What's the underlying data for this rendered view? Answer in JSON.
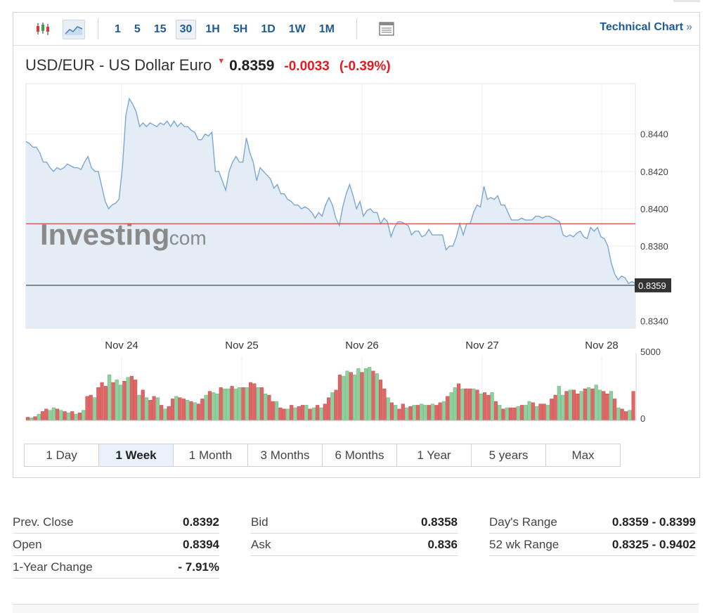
{
  "toolbar": {
    "candle_icon": "candlestick-icon",
    "area_icon": "area-chart-icon",
    "intervals": [
      "1",
      "5",
      "15",
      "30",
      "1H",
      "5H",
      "1D",
      "1W",
      "1M"
    ],
    "active_interval": "30",
    "table_icon": "table-icon",
    "technical_chart_label": "Technical Chart",
    "technical_chart_arrow": "»"
  },
  "instrument": {
    "name": "USD/EUR - US Dollar Euro",
    "price": "0.8359",
    "change": "-0.0033",
    "change_pct": "(-0.39%)",
    "down_color": "#e31b23"
  },
  "watermark": {
    "brand": "Investing",
    "suffix": ".com"
  },
  "chart_data": {
    "type": "area",
    "x_labels": [
      "Nov 24",
      "Nov 25",
      "Nov 26",
      "Nov 27",
      "Nov 28"
    ],
    "y_ticks": [
      "0.8440",
      "0.8420",
      "0.8400",
      "0.8380",
      "0.8340"
    ],
    "ylim": [
      0.8336,
      0.8467
    ],
    "prev_close": 0.8392,
    "current_price": 0.8359,
    "current_price_label": "0.8359",
    "prices": [
      0.8436,
      0.8435,
      0.8433,
      0.8433,
      0.843,
      0.8425,
      0.8425,
      0.8422,
      0.842,
      0.8422,
      0.8421,
      0.8422,
      0.8424,
      0.8423,
      0.8422,
      0.8422,
      0.8421,
      0.8425,
      0.8428,
      0.8422,
      0.842,
      0.842,
      0.8412,
      0.8404,
      0.84,
      0.8402,
      0.8403,
      0.8405,
      0.8422,
      0.845,
      0.8459,
      0.8456,
      0.8452,
      0.8444,
      0.8446,
      0.8444,
      0.8446,
      0.8445,
      0.8444,
      0.8446,
      0.8445,
      0.8447,
      0.8444,
      0.8447,
      0.8444,
      0.8446,
      0.8444,
      0.8444,
      0.8442,
      0.8441,
      0.8437,
      0.8437,
      0.844,
      0.8439,
      0.8441,
      0.842,
      0.842,
      0.8415,
      0.841,
      0.842,
      0.8425,
      0.8428,
      0.8425,
      0.8425,
      0.8438,
      0.843,
      0.8425,
      0.8415,
      0.8422,
      0.842,
      0.8418,
      0.8416,
      0.8411,
      0.8413,
      0.8408,
      0.8408,
      0.8405,
      0.8404,
      0.8402,
      0.8402,
      0.84,
      0.8401,
      0.84,
      0.8398,
      0.8395,
      0.8398,
      0.8396,
      0.8402,
      0.8406,
      0.8402,
      0.8395,
      0.8391,
      0.8401,
      0.8408,
      0.8413,
      0.8407,
      0.84,
      0.8404,
      0.8396,
      0.8399,
      0.84,
      0.8398,
      0.8398,
      0.8392,
      0.8395,
      0.8393,
      0.8385,
      0.839,
      0.8393,
      0.8393,
      0.8392,
      0.8391,
      0.8386,
      0.8388,
      0.8388,
      0.8385,
      0.8386,
      0.8389,
      0.8386,
      0.8386,
      0.8386,
      0.8386,
      0.8378,
      0.838,
      0.838,
      0.8385,
      0.8392,
      0.8386,
      0.8392,
      0.8392,
      0.8398,
      0.8402,
      0.8401,
      0.8412,
      0.8405,
      0.8406,
      0.8405,
      0.8407,
      0.8402,
      0.8402,
      0.8398,
      0.8394,
      0.8394,
      0.8394,
      0.8395,
      0.8394,
      0.8394,
      0.8394,
      0.8396,
      0.8396,
      0.8395,
      0.8396,
      0.8396,
      0.8395,
      0.8394,
      0.8393,
      0.8386,
      0.8385,
      0.8386,
      0.8385,
      0.8387,
      0.8388,
      0.8385,
      0.8384,
      0.839,
      0.8388,
      0.839,
      0.8385,
      0.8384,
      0.838,
      0.8371,
      0.8365,
      0.8362,
      0.8364,
      0.8363,
      0.836,
      0.8361,
      0.836
    ],
    "volume_ylim": [
      0,
      5000
    ],
    "volume_ticks": [
      "5000",
      "0"
    ],
    "volume_up_color": "#8fd19e",
    "volume_down_color": "#e06666",
    "volumes": [
      250,
      200,
      300,
      500,
      700,
      900,
      800,
      1000,
      900,
      800,
      700,
      600,
      700,
      500,
      600,
      800,
      1900,
      2000,
      1800,
      2600,
      3000,
      2700,
      3600,
      3000,
      3200,
      2800,
      3100,
      3400,
      3500,
      3200,
      2000,
      2400,
      1800,
      1600,
      1900,
      1800,
      1200,
      900,
      1100,
      1700,
      1900,
      1800,
      1700,
      1600,
      1500,
      1400,
      1300,
      1700,
      2000,
      2300,
      2200,
      2100,
      2600,
      2500,
      2500,
      2700,
      2500,
      2600,
      2600,
      2600,
      3000,
      2900,
      2600,
      2600,
      2100,
      2000,
      1500,
      1500,
      1000,
      900,
      900,
      1200,
      1000,
      1100,
      1200,
      1200,
      900,
      1000,
      1200,
      1000,
      1300,
      1800,
      2200,
      2400,
      3600,
      3500,
      3900,
      3800,
      3600,
      4100,
      3800,
      4100,
      4200,
      3900,
      3700,
      3200,
      2500,
      1800,
      1400,
      1200,
      900,
      1300,
      1000,
      1100,
      1200,
      1200,
      1300,
      1200,
      1200,
      1300,
      1200,
      1400,
      1500,
      1900,
      2200,
      2600,
      2900,
      2500,
      2500,
      2500,
      2500,
      2400,
      2100,
      2200,
      2000,
      2200,
      1500,
      1200,
      900,
      1000,
      1000,
      1000,
      1100,
      1200,
      1200,
      1500,
      1400,
      1100,
      1300,
      1300,
      1200,
      1700,
      2000,
      2700,
      2000,
      2300,
      2400,
      2400,
      2100,
      2300,
      2500,
      2600,
      2500,
      2800,
      2400,
      2300,
      2100,
      2300,
      1700,
      1000,
      900,
      700,
      800,
      2300
    ],
    "volume_up": [
      0,
      1,
      0,
      1,
      0,
      0,
      1,
      1,
      0,
      1,
      0,
      1,
      0,
      1,
      0,
      1,
      0,
      0,
      1,
      0,
      0,
      0,
      1,
      0,
      1,
      1,
      0,
      1,
      0,
      0,
      1,
      0,
      1,
      0,
      0,
      1,
      0,
      1,
      0,
      0,
      1,
      0,
      0,
      1,
      0,
      1,
      0,
      0,
      1,
      0,
      1,
      1,
      0,
      1,
      1,
      0,
      1,
      1,
      0,
      1,
      0,
      0,
      1,
      0,
      1,
      0,
      0,
      1,
      0,
      0,
      1,
      0,
      1,
      0,
      0,
      1,
      0,
      1,
      0,
      1,
      0,
      0,
      1,
      0,
      0,
      1,
      1,
      0,
      1,
      1,
      0,
      1,
      1,
      0,
      1,
      0,
      0,
      1,
      0,
      1,
      0,
      0,
      1,
      0,
      1,
      0,
      1,
      1,
      0,
      1,
      0,
      0,
      1,
      0,
      1,
      1,
      0,
      1,
      0,
      0,
      1,
      0,
      1,
      0,
      0,
      1,
      0,
      1,
      0,
      1,
      0,
      0,
      1,
      0,
      1,
      1,
      0,
      1,
      0,
      0,
      1,
      0,
      0,
      1,
      1,
      0,
      1,
      0,
      0,
      1,
      0,
      1,
      0,
      1,
      1,
      0,
      0,
      1,
      0,
      1,
      0,
      0,
      1,
      0,
      1,
      0,
      0,
      1
    ]
  },
  "ranges": {
    "items": [
      "1 Day",
      "1 Week",
      "1 Month",
      "3 Months",
      "6 Months",
      "1 Year",
      "5 years",
      "Max"
    ],
    "active": "1 Week"
  },
  "stats": {
    "col1": [
      {
        "label": "Prev. Close",
        "value": "0.8392"
      },
      {
        "label": "Open",
        "value": "0.8394"
      },
      {
        "label": "1-Year Change",
        "value": "- 7.91%"
      }
    ],
    "col2": [
      {
        "label": "Bid",
        "value": "0.8358"
      },
      {
        "label": "Ask",
        "value": "0.836"
      }
    ],
    "col3": [
      {
        "label": "Day's Range",
        "value": "0.8359 - 0.8399"
      },
      {
        "label": "52 wk Range",
        "value": "0.8325 - 0.9402"
      }
    ]
  }
}
